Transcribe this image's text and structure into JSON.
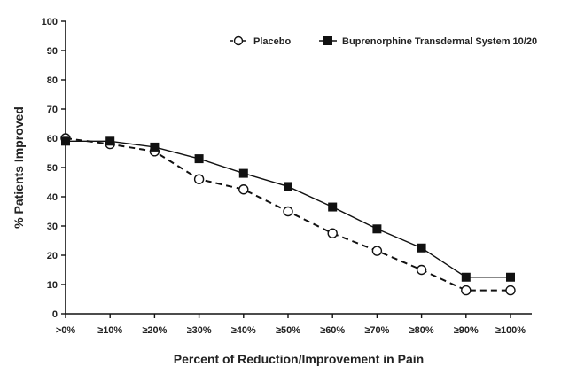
{
  "chart_data": {
    "type": "line",
    "xlabel": "Percent of Reduction/Improvement in Pain",
    "ylabel": "% Patients Improved",
    "categories": [
      ">0%",
      "≥10%",
      "≥20%",
      "≥30%",
      "≥40%",
      "≥50%",
      "≥60%",
      "≥70%",
      "≥80%",
      "≥90%",
      "≥100%"
    ],
    "ylim": [
      0,
      100
    ],
    "yticks": [
      "0",
      "10",
      "20",
      "30",
      "40",
      "50",
      "60",
      "70",
      "80",
      "90",
      "100"
    ],
    "legend_position": "top-right",
    "grid": false,
    "series": [
      {
        "name": "Placebo",
        "values": [
          60,
          58,
          55.5,
          46,
          42.5,
          35,
          27.5,
          21.5,
          15,
          8,
          8
        ],
        "style": "dashed",
        "marker": "open-circle",
        "color": "#111111"
      },
      {
        "name": "Buprenorphine Transdermal System 10/20",
        "values": [
          59,
          59,
          57,
          53,
          48,
          43.5,
          36.5,
          29,
          22.5,
          12.5,
          12.5
        ],
        "style": "solid",
        "marker": "filled-square",
        "color": "#111111"
      }
    ]
  }
}
